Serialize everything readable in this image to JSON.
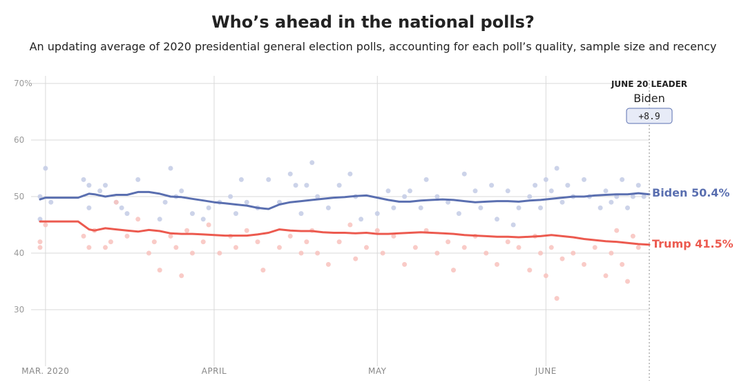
{
  "title": "Who’s ahead in the national polls?",
  "subtitle": "An updating average of 2020 presidential general election polls, accounting for each poll’s quality, sample size and recency",
  "leader_box": {
    "heading": "JUNE 20 LEADER",
    "name": "Biden",
    "margin": "+8.9"
  },
  "colors": {
    "biden": "#5a6fb0",
    "trump": "#ec5a4f",
    "biden_dot": "#c3cbe5",
    "trump_dot": "#f8c2bd",
    "grid": "#d9d9d9",
    "leader_box_fill": "#e7ebf7"
  },
  "chart_data": {
    "type": "line",
    "title": "Who’s ahead in the national polls?",
    "x_domain_days": [
      0,
      112
    ],
    "x_day_note": "days since Feb 29, 2020",
    "ylim": [
      20,
      70
    ],
    "y_ticks": [
      30,
      40,
      50,
      60,
      70
    ],
    "y_tick_labels": [
      "30",
      "40",
      "50",
      "60",
      "70%"
    ],
    "x_ticks": [
      {
        "day": 1,
        "label": "MAR. 2020"
      },
      {
        "day": 32,
        "label": "APRIL"
      },
      {
        "day": 62,
        "label": "MAY"
      },
      {
        "day": 93,
        "label": "JUNE"
      }
    ],
    "series": [
      {
        "name": "Biden",
        "end_label": "Biden 50.4%",
        "x": [
          0,
          1,
          3,
          5,
          7,
          9,
          10,
          12,
          14,
          16,
          18,
          20,
          22,
          24,
          26,
          28,
          30,
          32,
          34,
          36,
          38,
          40,
          42,
          44,
          46,
          48,
          50,
          52,
          54,
          56,
          58,
          60,
          62,
          64,
          66,
          68,
          70,
          72,
          74,
          76,
          78,
          80,
          82,
          84,
          86,
          88,
          90,
          92,
          94,
          96,
          98,
          100,
          102,
          104,
          106,
          108,
          110,
          112
        ],
        "values": [
          49.5,
          49.8,
          49.8,
          49.8,
          49.8,
          50.5,
          50.4,
          50.0,
          50.3,
          50.3,
          50.8,
          50.8,
          50.5,
          50.0,
          49.9,
          49.6,
          49.3,
          49.0,
          48.8,
          48.6,
          48.4,
          48.0,
          47.8,
          48.6,
          49.0,
          49.2,
          49.4,
          49.6,
          49.8,
          49.9,
          50.1,
          50.2,
          49.8,
          49.4,
          49.1,
          49.1,
          49.3,
          49.4,
          49.5,
          49.4,
          49.2,
          49.0,
          49.1,
          49.2,
          49.2,
          49.1,
          49.3,
          49.4,
          49.6,
          49.8,
          50.0,
          50.0,
          50.2,
          50.3,
          50.4,
          50.4,
          50.6,
          50.4
        ]
      },
      {
        "name": "Trump",
        "end_label": "Trump 41.5%",
        "x": [
          0,
          1,
          3,
          5,
          7,
          9,
          10,
          12,
          14,
          16,
          18,
          20,
          22,
          24,
          26,
          28,
          30,
          32,
          34,
          36,
          38,
          40,
          42,
          44,
          46,
          48,
          50,
          52,
          54,
          56,
          58,
          60,
          62,
          64,
          66,
          68,
          70,
          72,
          74,
          76,
          78,
          80,
          82,
          84,
          86,
          88,
          90,
          92,
          94,
          96,
          98,
          100,
          102,
          104,
          106,
          108,
          110,
          112
        ],
        "values": [
          45.6,
          45.6,
          45.6,
          45.6,
          45.6,
          44.2,
          44.0,
          44.4,
          44.2,
          44.0,
          43.8,
          44.1,
          43.9,
          43.5,
          43.4,
          43.4,
          43.3,
          43.2,
          43.1,
          43.1,
          43.1,
          43.3,
          43.6,
          44.2,
          44.0,
          43.9,
          43.9,
          43.7,
          43.6,
          43.6,
          43.5,
          43.6,
          43.4,
          43.4,
          43.5,
          43.6,
          43.7,
          43.6,
          43.5,
          43.4,
          43.2,
          43.1,
          43.0,
          42.9,
          42.9,
          42.8,
          42.9,
          43.0,
          43.2,
          43.0,
          42.8,
          42.5,
          42.3,
          42.1,
          42.0,
          41.8,
          41.6,
          41.5
        ]
      }
    ],
    "polls_biden": [
      [
        0,
        46
      ],
      [
        0,
        50
      ],
      [
        1,
        55
      ],
      [
        2,
        49
      ],
      [
        8,
        53
      ],
      [
        9,
        52
      ],
      [
        9,
        48
      ],
      [
        11,
        51
      ],
      [
        12,
        52
      ],
      [
        14,
        49
      ],
      [
        15,
        48
      ],
      [
        16,
        47
      ],
      [
        18,
        53
      ],
      [
        22,
        46
      ],
      [
        23,
        49
      ],
      [
        24,
        55
      ],
      [
        25,
        50
      ],
      [
        26,
        51
      ],
      [
        28,
        47
      ],
      [
        30,
        46
      ],
      [
        31,
        48
      ],
      [
        33,
        49
      ],
      [
        35,
        50
      ],
      [
        36,
        47
      ],
      [
        37,
        53
      ],
      [
        38,
        49
      ],
      [
        40,
        48
      ],
      [
        42,
        53
      ],
      [
        44,
        49
      ],
      [
        46,
        54
      ],
      [
        47,
        52
      ],
      [
        48,
        47
      ],
      [
        49,
        52
      ],
      [
        50,
        56
      ],
      [
        51,
        50
      ],
      [
        53,
        48
      ],
      [
        55,
        52
      ],
      [
        57,
        54
      ],
      [
        58,
        50
      ],
      [
        59,
        46
      ],
      [
        62,
        47
      ],
      [
        64,
        51
      ],
      [
        65,
        48
      ],
      [
        67,
        50
      ],
      [
        68,
        51
      ],
      [
        70,
        48
      ],
      [
        71,
        53
      ],
      [
        73,
        50
      ],
      [
        75,
        49
      ],
      [
        77,
        47
      ],
      [
        78,
        54
      ],
      [
        80,
        51
      ],
      [
        81,
        48
      ],
      [
        83,
        52
      ],
      [
        84,
        46
      ],
      [
        86,
        51
      ],
      [
        87,
        45
      ],
      [
        88,
        48
      ],
      [
        90,
        50
      ],
      [
        91,
        52
      ],
      [
        92,
        48
      ],
      [
        93,
        53
      ],
      [
        94,
        51
      ],
      [
        95,
        55
      ],
      [
        96,
        49
      ],
      [
        97,
        52
      ],
      [
        98,
        50
      ],
      [
        100,
        53
      ],
      [
        101,
        50
      ],
      [
        103,
        48
      ],
      [
        104,
        51
      ],
      [
        105,
        49
      ],
      [
        106,
        50
      ],
      [
        107,
        53
      ],
      [
        108,
        48
      ],
      [
        109,
        50
      ],
      [
        110,
        52
      ],
      [
        111,
        50
      ]
    ],
    "polls_trump": [
      [
        0,
        42
      ],
      [
        0,
        41
      ],
      [
        1,
        45
      ],
      [
        8,
        43
      ],
      [
        9,
        41
      ],
      [
        10,
        44
      ],
      [
        12,
        41
      ],
      [
        13,
        42
      ],
      [
        14,
        49
      ],
      [
        16,
        43
      ],
      [
        18,
        46
      ],
      [
        20,
        40
      ],
      [
        21,
        42
      ],
      [
        22,
        37
      ],
      [
        24,
        43
      ],
      [
        25,
        41
      ],
      [
        26,
        36
      ],
      [
        27,
        44
      ],
      [
        28,
        40
      ],
      [
        30,
        42
      ],
      [
        31,
        45
      ],
      [
        33,
        40
      ],
      [
        35,
        43
      ],
      [
        36,
        41
      ],
      [
        38,
        44
      ],
      [
        40,
        42
      ],
      [
        41,
        37
      ],
      [
        44,
        41
      ],
      [
        46,
        43
      ],
      [
        48,
        40
      ],
      [
        49,
        42
      ],
      [
        50,
        44
      ],
      [
        51,
        40
      ],
      [
        53,
        38
      ],
      [
        55,
        42
      ],
      [
        57,
        45
      ],
      [
        58,
        39
      ],
      [
        60,
        41
      ],
      [
        62,
        44
      ],
      [
        63,
        40
      ],
      [
        65,
        43
      ],
      [
        67,
        38
      ],
      [
        69,
        41
      ],
      [
        71,
        44
      ],
      [
        73,
        40
      ],
      [
        75,
        42
      ],
      [
        76,
        37
      ],
      [
        78,
        41
      ],
      [
        80,
        43
      ],
      [
        82,
        40
      ],
      [
        84,
        38
      ],
      [
        86,
        42
      ],
      [
        88,
        41
      ],
      [
        90,
        37
      ],
      [
        91,
        43
      ],
      [
        92,
        40
      ],
      [
        93,
        36
      ],
      [
        94,
        41
      ],
      [
        95,
        32
      ],
      [
        96,
        39
      ],
      [
        98,
        40
      ],
      [
        100,
        38
      ],
      [
        102,
        41
      ],
      [
        104,
        36
      ],
      [
        105,
        40
      ],
      [
        106,
        44
      ],
      [
        107,
        38
      ],
      [
        108,
        35
      ],
      [
        109,
        43
      ],
      [
        110,
        41
      ]
    ]
  }
}
